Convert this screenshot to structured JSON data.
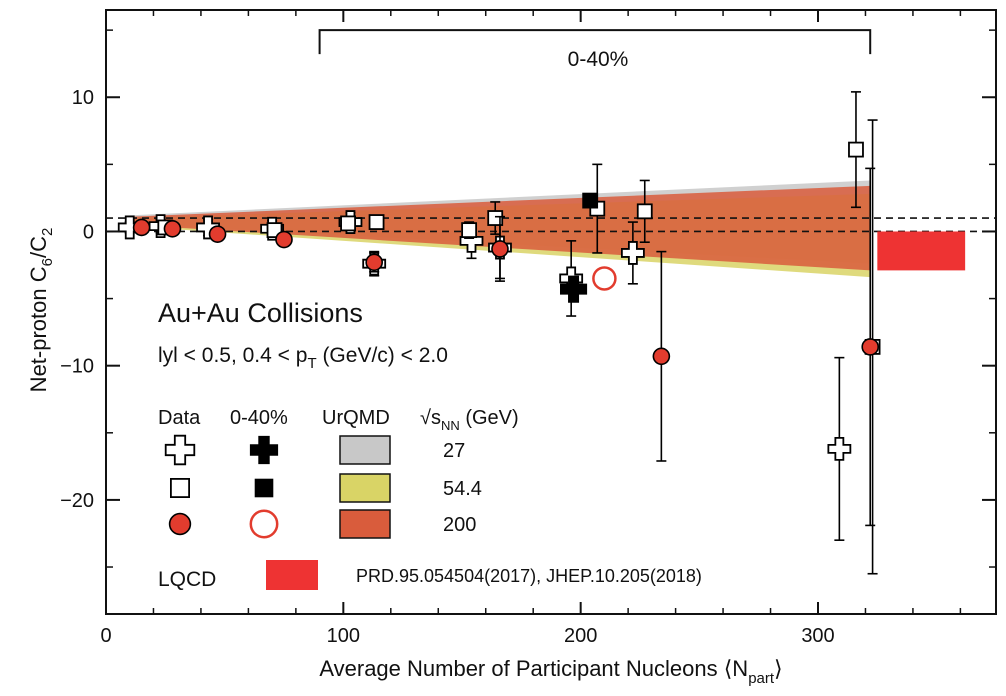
{
  "chart_data": {
    "type": "scatter",
    "xlabel": "Average Number of Participant Nucleons ⟨N",
    "xlabel_sub": "part",
    "xlabel_tail": "⟩",
    "ylabel": "Net-proton C",
    "ylabel_sub1": "6",
    "ylabel_mid": "/C",
    "ylabel_sub2": "2",
    "xlim": [
      0,
      375
    ],
    "ylim": [
      -28.5,
      16.5
    ],
    "xticks": [
      0,
      100,
      200,
      300
    ],
    "xtick_labels": [
      "0",
      "100",
      "200",
      "300"
    ],
    "yticks": [
      10,
      0,
      -10,
      -20
    ],
    "ytick_labels": [
      "10",
      "0",
      "−10",
      "−20"
    ],
    "reference_lines": [
      {
        "y": 0,
        "style": "dashed"
      },
      {
        "y": 1,
        "style": "dashed"
      }
    ],
    "bracket": {
      "label": "0-40%",
      "x_start": 90,
      "x_end": 322,
      "y": 15
    },
    "annotations": {
      "system": "Au+Au Collisions",
      "cuts": "lyl < 0.5, 0.4 < p",
      "cuts_sub": "T",
      "cuts_tail": " (GeV/c) < 2.0"
    },
    "legend": {
      "col_data": "Data",
      "col_central": "0-40%",
      "col_model": "UrQMD",
      "col_energy_prefix": "√",
      "col_energy_s": "s",
      "col_energy_sub": "NN",
      "col_energy_unit": " (GeV)",
      "energies": [
        "27",
        "54.4",
        "200"
      ],
      "lqcd_label": "LQCD",
      "lqcd_ref": "PRD.95.054504(2017), JHEP.10.205(2018)"
    },
    "series": [
      {
        "name": "27",
        "marker": "cross-open",
        "points": [
          {
            "x": 10,
            "y": 0.3,
            "err": 0.4
          },
          {
            "x": 23,
            "y": 0.4,
            "err": 0.5
          },
          {
            "x": 43,
            "y": 0.3,
            "err": 0.6
          },
          {
            "x": 70,
            "y": 0.2,
            "err": 0.6
          },
          {
            "x": 103,
            "y": 0.7,
            "err": 0.7
          },
          {
            "x": 113,
            "y": -2.4,
            "err": 0.9
          },
          {
            "x": 154,
            "y": -0.7,
            "err": 1.3
          },
          {
            "x": 166,
            "y": -1.2,
            "err": 2.3
          },
          {
            "x": 196,
            "y": -3.5,
            "err": 2.8
          },
          {
            "x": 222,
            "y": -1.6,
            "err": 2.3
          },
          {
            "x": 309,
            "y": -16.2,
            "err": 6.8
          }
        ]
      },
      {
        "name": "54.4",
        "marker": "square-open",
        "points": [
          {
            "x": 25,
            "y": 0.3,
            "err": 0.3
          },
          {
            "x": 71,
            "y": 0.1,
            "err": 0.4
          },
          {
            "x": 102,
            "y": 0.6,
            "err": 0.5
          },
          {
            "x": 114,
            "y": 0.7,
            "err": 0.5
          },
          {
            "x": 153,
            "y": 0.1,
            "err": 0.6
          },
          {
            "x": 164,
            "y": 1.0,
            "err": 1.2
          },
          {
            "x": 207,
            "y": 1.7,
            "err": 3.3
          },
          {
            "x": 227,
            "y": 1.5,
            "err": 2.3
          },
          {
            "x": 316,
            "y": 6.1,
            "err": 4.3
          },
          {
            "x": 323,
            "y": -8.6,
            "err": 16.9
          }
        ]
      },
      {
        "name": "200",
        "marker": "circle-filled",
        "points": [
          {
            "x": 15,
            "y": 0.3,
            "err": 0.3
          },
          {
            "x": 28,
            "y": 0.2,
            "err": 0.3
          },
          {
            "x": 47,
            "y": -0.2,
            "err": 0.3
          },
          {
            "x": 75,
            "y": -0.6,
            "err": 0.3
          },
          {
            "x": 113,
            "y": -2.3,
            "err": 0.7
          },
          {
            "x": 166,
            "y": -1.3,
            "err": 2.4
          },
          {
            "x": 234,
            "y": -9.3,
            "err": 7.8
          },
          {
            "x": 322,
            "y": -8.6,
            "err": 13.3
          }
        ]
      },
      {
        "name": "0-40% 27",
        "marker": "cross-filled",
        "points": [
          {
            "x": 197,
            "y": -4.3,
            "err": 0
          }
        ]
      },
      {
        "name": "0-40% 54.4",
        "marker": "square-filled",
        "points": [
          {
            "x": 204,
            "y": 2.3,
            "err": 0
          }
        ]
      },
      {
        "name": "0-40% 200",
        "marker": "circle-open",
        "points": [
          {
            "x": 210,
            "y": -3.5,
            "err": 0
          }
        ]
      }
    ],
    "bands": [
      {
        "name": "27",
        "color": "#c8c8c8",
        "x": [
          10,
          322
        ],
        "upper": [
          1.2,
          3.8
        ],
        "lower": [
          0.6,
          -2.4
        ]
      },
      {
        "name": "54.4",
        "color": "#d9d466",
        "x": [
          10,
          322
        ],
        "upper": [
          1.0,
          2.8
        ],
        "lower": [
          0.4,
          -3.4
        ]
      },
      {
        "name": "200",
        "color": "#d95c3c",
        "x": [
          10,
          322
        ],
        "upper": [
          1.1,
          3.4
        ],
        "lower": [
          0.5,
          -2.9
        ]
      }
    ],
    "lqcd_box": {
      "x": [
        325,
        362
      ],
      "y": [
        -2.9,
        0.0
      ],
      "color": "#ee3333"
    }
  }
}
